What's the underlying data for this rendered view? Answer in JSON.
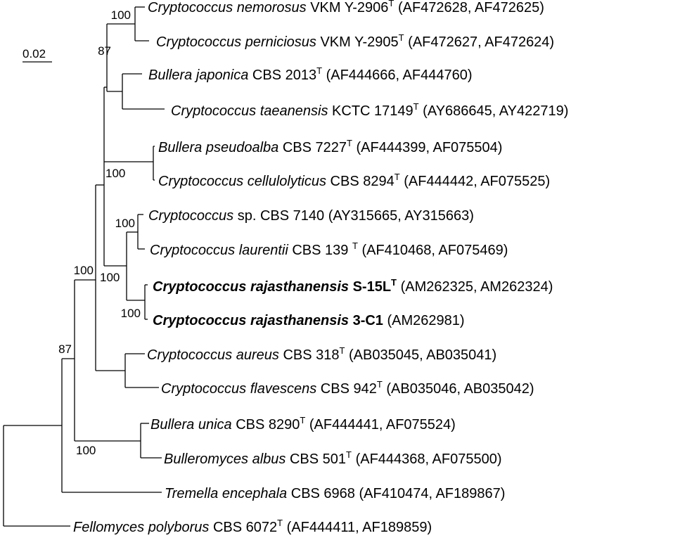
{
  "scale_bar": {
    "label": "0.02",
    "value": 0.02
  },
  "taxa": [
    {
      "id": "nemorosus",
      "genus": "Cryptococcus",
      "epithet": "nemorosus",
      "strain": "VKM Y-2906",
      "type_strain": true,
      "accessions": "(AF472628, AF472625)",
      "bold": false
    },
    {
      "id": "perniciosus",
      "genus": "Cryptococcus",
      "epithet": "perniciosus",
      "strain": "VKM Y-2905",
      "type_strain": true,
      "accessions": "(AF472627, AF472624)",
      "bold": false
    },
    {
      "id": "japonica",
      "genus": "Bullera",
      "epithet": "japonica",
      "strain": "CBS 2013",
      "type_strain": true,
      "accessions": "(AF444666, AF444760)",
      "bold": false
    },
    {
      "id": "taeanensis",
      "genus": "Cryptococcus",
      "epithet": "taeanensis",
      "strain": "KCTC 17149",
      "type_strain": true,
      "accessions": "(AY686645, AY422719)",
      "bold": false
    },
    {
      "id": "pseudoalba",
      "genus": "Bullera",
      "epithet": "pseudoalba",
      "strain": "CBS 7227",
      "type_strain": true,
      "accessions": "(AF444399, AF075504)",
      "bold": false
    },
    {
      "id": "cellulolyticus",
      "genus": "Cryptococcus",
      "epithet": "cellulolyticus",
      "strain": "CBS 8294",
      "type_strain": true,
      "accessions": "(AF444442, AF075525)",
      "bold": false
    },
    {
      "id": "sp7140",
      "genus": "Cryptococcus",
      "epithet": "",
      "strain": "sp. CBS 7140",
      "type_strain": false,
      "accessions": "(AY315665, AY315663)",
      "bold": false
    },
    {
      "id": "laurentii",
      "genus": "Cryptococcus",
      "epithet": "laurentii",
      "strain": "CBS 139 ",
      "type_strain": true,
      "accessions": "(AF410468, AF075469)",
      "bold": false
    },
    {
      "id": "rajS15L",
      "genus": "Cryptococcus",
      "epithet": "rajasthanensis",
      "strain": "S-15L",
      "type_strain": true,
      "accessions": "(AM262325, AM262324)",
      "bold": true
    },
    {
      "id": "raj3C1",
      "genus": "Cryptococcus",
      "epithet": "rajasthanensis",
      "strain": "3-C1",
      "type_strain": false,
      "accessions": "(AM262981)",
      "bold": true
    },
    {
      "id": "aureus",
      "genus": "Cryptococcus",
      "epithet": "aureus",
      "strain": "CBS 318",
      "type_strain": true,
      "accessions": "(AB035045, AB035041)",
      "bold": false
    },
    {
      "id": "flavescens",
      "genus": "Cryptococcus",
      "epithet": "flavescens",
      "strain": "CBS 942",
      "type_strain": true,
      "accessions": "(AB035046, AB035042)",
      "bold": false
    },
    {
      "id": "unica",
      "genus": "Bullera",
      "epithet": "unica",
      "strain": "CBS 8290",
      "type_strain": true,
      "accessions": "(AF444441, AF075524)",
      "bold": false
    },
    {
      "id": "albus",
      "genus": "Bulleromyces",
      "epithet": "albus",
      "strain": "CBS 501",
      "type_strain": true,
      "accessions": "(AF444368, AF075500)",
      "bold": false
    },
    {
      "id": "encephala",
      "genus": "Tremella",
      "epithet": "encephala",
      "strain": "CBS 6968",
      "type_strain": false,
      "accessions": "(AF410474, AF189867)",
      "bold": false
    },
    {
      "id": "polyborus",
      "genus": "Fellomyces",
      "epithet": "polyborus",
      "strain": "CBS 6072",
      "type_strain": true,
      "accessions": "(AF444411, AF189859)",
      "bold": false
    }
  ],
  "type_mark": "T",
  "bootstrap": [
    {
      "clade": "nemorosus-perniciosus",
      "value": "100"
    },
    {
      "clade": "nemorosus-japonica",
      "value": "87"
    },
    {
      "clade": "pseudoalba-cellulolyticus",
      "value": "100"
    },
    {
      "clade": "sp7140-laurentii",
      "value": "100"
    },
    {
      "clade": "laurentii-rajasthanensis",
      "value": "100"
    },
    {
      "clade": "rajasthanensis",
      "value": "100"
    },
    {
      "clade": "ingroup-core",
      "value": "100"
    },
    {
      "clade": "ingroup",
      "value": "87"
    },
    {
      "clade": "unica-albus",
      "value": "100"
    }
  ]
}
